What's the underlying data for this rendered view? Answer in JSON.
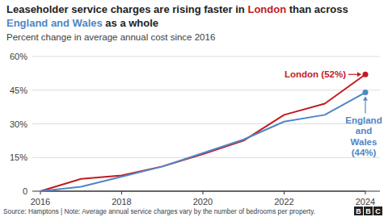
{
  "chart_data": {
    "type": "line",
    "title": "Leaseholder service charges are rising faster in London than across England and Wales as a whole",
    "subtitle": "Percent change in average annual cost since 2016",
    "source": "Source: Hamptons | Note: Average annual service charges vary by the number of bedrooms per property.",
    "logo": "BBC",
    "x": [
      2016,
      2017,
      2018,
      2019,
      2020,
      2021,
      2022,
      2023,
      2024
    ],
    "series": [
      {
        "name": "London",
        "color": "#c41a1f",
        "values": [
          0,
          5.5,
          7,
          11,
          16.5,
          22.5,
          34,
          39,
          52
        ]
      },
      {
        "name": "England and Wales",
        "color": "#4f86c6",
        "values": [
          0,
          2,
          6.5,
          11,
          17,
          23,
          31,
          34,
          44
        ]
      }
    ],
    "annotations": [
      {
        "text": "London (52%)"
      },
      {
        "text": "England and Wales (44%)"
      }
    ],
    "xlim": [
      2016,
      2024
    ],
    "xticks": [
      2016,
      2018,
      2020,
      2022,
      2024
    ],
    "ylim": [
      0,
      60
    ],
    "yticks": [
      0,
      {
        "value": 15,
        "label": "15%"
      },
      {
        "value": 30,
        "label": "30%"
      },
      {
        "value": 45,
        "label": "45%"
      },
      {
        "value": 60,
        "label": "60%"
      }
    ],
    "grid": true
  }
}
